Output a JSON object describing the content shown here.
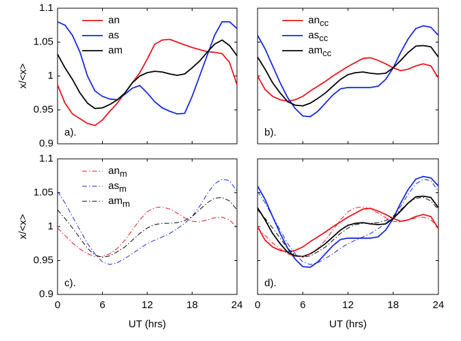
{
  "chart_data": [
    {
      "type": "line",
      "annotation": "a).",
      "ylabel": "x/<x>",
      "xlim": [
        0,
        24
      ],
      "ylim": [
        0.9,
        1.1
      ],
      "xticks": [
        0,
        6,
        12,
        18,
        24
      ],
      "yticks": [
        0.9,
        0.95,
        1,
        1.05,
        1.1
      ],
      "show_xtick_labels": false,
      "show_ytick_labels": true,
      "legend": "top-left",
      "x": [
        0,
        1,
        2,
        3,
        4,
        5,
        6,
        7,
        8,
        9,
        10,
        11,
        12,
        13,
        14,
        15,
        16,
        17,
        18,
        19,
        20,
        21,
        22,
        23,
        24
      ],
      "series": [
        {
          "name": "an",
          "color": "#e8141c",
          "style": "solid",
          "values": [
            0.987,
            0.96,
            0.944,
            0.937,
            0.93,
            0.927,
            0.935,
            0.948,
            0.96,
            0.975,
            0.99,
            1.005,
            1.025,
            1.047,
            1.053,
            1.054,
            1.05,
            1.046,
            1.042,
            1.039,
            1.036,
            1.035,
            1.033,
            1.02,
            0.987
          ]
        },
        {
          "name": "as",
          "color": "#1428e0",
          "style": "solid",
          "values": [
            1.08,
            1.075,
            1.06,
            1.035,
            1.0,
            0.978,
            0.97,
            0.966,
            0.965,
            0.973,
            0.982,
            0.986,
            0.975,
            0.962,
            0.953,
            0.948,
            0.944,
            0.945,
            0.97,
            1.0,
            1.03,
            1.06,
            1.08,
            1.08,
            1.07
          ]
        },
        {
          "name": "am",
          "color": "#000000",
          "style": "solid",
          "values": [
            1.032,
            1.012,
            0.995,
            0.975,
            0.96,
            0.952,
            0.953,
            0.958,
            0.965,
            0.975,
            0.99,
            1.0,
            1.005,
            1.007,
            1.006,
            1.003,
            1.001,
            1.003,
            1.012,
            1.022,
            1.035,
            1.047,
            1.053,
            1.045,
            1.03
          ]
        }
      ]
    },
    {
      "type": "line",
      "annotation": "b).",
      "xlim": [
        0,
        24
      ],
      "ylim": [
        0.9,
        1.1
      ],
      "xticks": [
        0,
        6,
        12,
        18,
        24
      ],
      "yticks": [
        0.9,
        0.95,
        1,
        1.05,
        1.1
      ],
      "show_xtick_labels": false,
      "show_ytick_labels": false,
      "legend": "top-left",
      "x": [
        0,
        1,
        2,
        3,
        4,
        5,
        6,
        7,
        8,
        9,
        10,
        11,
        12,
        13,
        14,
        15,
        16,
        17,
        18,
        19,
        20,
        21,
        22,
        23,
        24
      ],
      "series": [
        {
          "name": "an",
          "name_sub": "cc",
          "color": "#e8141c",
          "style": "solid",
          "values": [
            1.0,
            0.98,
            0.97,
            0.965,
            0.963,
            0.965,
            0.97,
            0.978,
            0.985,
            0.992,
            1.0,
            1.007,
            1.014,
            1.02,
            1.026,
            1.027,
            1.023,
            1.018,
            1.012,
            1.008,
            1.01,
            1.015,
            1.018,
            1.015,
            0.997
          ]
        },
        {
          "name": "as",
          "name_sub": "cc",
          "color": "#1428e0",
          "style": "solid",
          "values": [
            1.06,
            1.04,
            1.015,
            0.99,
            0.968,
            0.952,
            0.941,
            0.94,
            0.948,
            0.96,
            0.972,
            0.981,
            0.983,
            0.983,
            0.983,
            0.983,
            0.985,
            0.995,
            1.012,
            1.035,
            1.055,
            1.07,
            1.074,
            1.072,
            1.06
          ]
        },
        {
          "name": "am",
          "name_sub": "cc",
          "color": "#000000",
          "style": "solid",
          "values": [
            1.028,
            1.01,
            0.99,
            0.975,
            0.962,
            0.957,
            0.956,
            0.96,
            0.967,
            0.975,
            0.985,
            0.995,
            1.002,
            1.005,
            1.006,
            1.004,
            1.003,
            1.004,
            1.012,
            1.023,
            1.035,
            1.044,
            1.045,
            1.043,
            1.028
          ]
        }
      ]
    },
    {
      "type": "line",
      "annotation": "c).",
      "ylabel": "x/<x>",
      "xlabel": "UT (hrs)",
      "xlim": [
        0,
        24
      ],
      "ylim": [
        0.9,
        1.1
      ],
      "xticks": [
        0,
        6,
        12,
        18,
        24
      ],
      "yticks": [
        0.9,
        0.95,
        1,
        1.05,
        1.1
      ],
      "show_xtick_labels": true,
      "show_ytick_labels": true,
      "legend": "top-left",
      "x": [
        0,
        1,
        2,
        3,
        4,
        5,
        6,
        7,
        8,
        9,
        10,
        11,
        12,
        13,
        14,
        15,
        16,
        17,
        18,
        19,
        20,
        21,
        22,
        23,
        24
      ],
      "series": [
        {
          "name": "an",
          "name_sub": "m",
          "color": "#e8141c",
          "style": "dashdot",
          "values": [
            0.998,
            0.987,
            0.976,
            0.967,
            0.96,
            0.956,
            0.956,
            0.96,
            0.968,
            0.98,
            0.995,
            1.01,
            1.022,
            1.028,
            1.029,
            1.026,
            1.02,
            1.013,
            1.008,
            1.007,
            1.01,
            1.013,
            1.014,
            1.01,
            0.999
          ]
        },
        {
          "name": "as",
          "name_sub": "m",
          "color": "#1428e0",
          "style": "dashdot",
          "values": [
            1.052,
            1.035,
            1.015,
            0.995,
            0.975,
            0.96,
            0.948,
            0.944,
            0.947,
            0.953,
            0.96,
            0.968,
            0.975,
            0.98,
            0.985,
            0.99,
            0.997,
            1.005,
            1.015,
            1.03,
            1.048,
            1.063,
            1.07,
            1.068,
            1.052
          ]
        },
        {
          "name": "am",
          "name_sub": "m",
          "color": "#000000",
          "style": "dashdot",
          "values": [
            1.025,
            1.012,
            0.998,
            0.983,
            0.968,
            0.958,
            0.955,
            0.957,
            0.963,
            0.97,
            0.98,
            0.99,
            0.998,
            1.003,
            1.005,
            1.005,
            1.006,
            1.009,
            1.015,
            1.025,
            1.035,
            1.042,
            1.043,
            1.038,
            1.025
          ]
        }
      ]
    },
    {
      "type": "line",
      "annotation": "d).",
      "xlabel": "UT (hrs)",
      "xlim": [
        0,
        24
      ],
      "ylim": [
        0.9,
        1.1
      ],
      "xticks": [
        0,
        6,
        12,
        18,
        24
      ],
      "yticks": [
        0.9,
        0.95,
        1,
        1.05,
        1.1
      ],
      "show_xtick_labels": true,
      "show_ytick_labels": false,
      "x": [
        0,
        1,
        2,
        3,
        4,
        5,
        6,
        7,
        8,
        9,
        10,
        11,
        12,
        13,
        14,
        15,
        16,
        17,
        18,
        19,
        20,
        21,
        22,
        23,
        24
      ],
      "series": [
        {
          "color": "#e8141c",
          "style": "solid",
          "values": [
            1.0,
            0.98,
            0.97,
            0.965,
            0.963,
            0.965,
            0.97,
            0.978,
            0.985,
            0.992,
            1.0,
            1.007,
            1.014,
            1.02,
            1.026,
            1.027,
            1.023,
            1.018,
            1.012,
            1.008,
            1.01,
            1.015,
            1.018,
            1.015,
            0.997
          ]
        },
        {
          "color": "#1428e0",
          "style": "solid",
          "values": [
            1.06,
            1.04,
            1.015,
            0.99,
            0.968,
            0.952,
            0.941,
            0.94,
            0.948,
            0.96,
            0.972,
            0.981,
            0.983,
            0.983,
            0.983,
            0.983,
            0.985,
            0.995,
            1.012,
            1.035,
            1.055,
            1.07,
            1.074,
            1.072,
            1.06
          ]
        },
        {
          "color": "#000000",
          "style": "solid",
          "values": [
            1.028,
            1.01,
            0.99,
            0.975,
            0.962,
            0.957,
            0.956,
            0.96,
            0.967,
            0.975,
            0.985,
            0.995,
            1.002,
            1.005,
            1.006,
            1.004,
            1.003,
            1.004,
            1.012,
            1.023,
            1.035,
            1.044,
            1.045,
            1.043,
            1.028
          ]
        },
        {
          "color": "#e8141c",
          "style": "dashdot",
          "values": [
            0.998,
            0.987,
            0.976,
            0.967,
            0.96,
            0.956,
            0.956,
            0.96,
            0.968,
            0.98,
            0.995,
            1.01,
            1.022,
            1.028,
            1.029,
            1.026,
            1.02,
            1.013,
            1.008,
            1.007,
            1.01,
            1.013,
            1.014,
            1.01,
            0.999
          ]
        },
        {
          "color": "#1428e0",
          "style": "dashdot",
          "values": [
            1.052,
            1.035,
            1.015,
            0.995,
            0.975,
            0.96,
            0.948,
            0.944,
            0.947,
            0.953,
            0.96,
            0.968,
            0.975,
            0.98,
            0.985,
            0.99,
            0.997,
            1.005,
            1.015,
            1.03,
            1.048,
            1.063,
            1.07,
            1.068,
            1.052
          ]
        },
        {
          "color": "#000000",
          "style": "dashdot",
          "values": [
            1.025,
            1.012,
            0.998,
            0.983,
            0.968,
            0.958,
            0.955,
            0.957,
            0.963,
            0.97,
            0.98,
            0.99,
            0.998,
            1.003,
            1.005,
            1.005,
            1.006,
            1.009,
            1.015,
            1.025,
            1.035,
            1.042,
            1.043,
            1.038,
            1.025
          ]
        }
      ]
    }
  ]
}
